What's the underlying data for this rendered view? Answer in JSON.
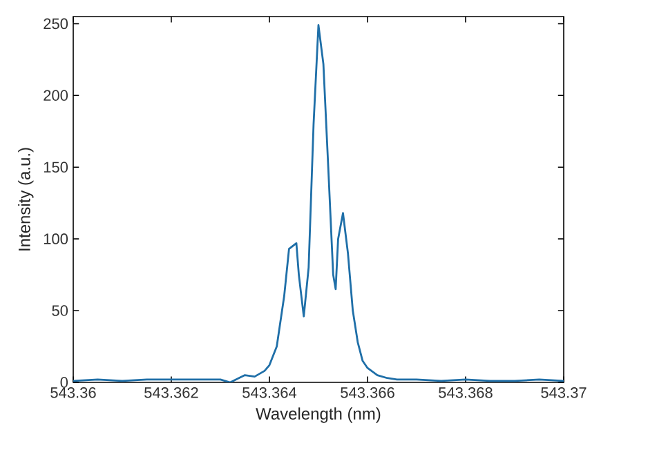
{
  "chart_data": {
    "type": "line",
    "xlabel": "Wavelength (nm)",
    "ylabel": "Intensity (a.u.)",
    "x": [
      543.36,
      543.3605,
      543.361,
      543.3615,
      543.362,
      543.3625,
      543.363,
      543.3632,
      543.3635,
      543.3637,
      543.3639,
      543.364,
      543.36415,
      543.3643,
      543.3644,
      543.36455,
      543.3646,
      543.3647,
      543.3648,
      543.3649,
      543.365,
      543.3651,
      543.3652,
      543.3653,
      543.36535,
      543.3654,
      543.3655,
      543.3656,
      543.3657,
      543.3658,
      543.3659,
      543.366,
      543.3662,
      543.3664,
      543.3666,
      543.367,
      543.3675,
      543.368,
      543.3685,
      543.369,
      543.3695,
      543.37
    ],
    "series": [
      {
        "color": "#1f6fa8",
        "values": [
          1,
          2,
          1,
          2,
          2,
          2,
          2,
          0,
          5,
          4,
          8,
          12,
          25,
          60,
          93,
          97,
          75,
          46,
          80,
          180,
          249,
          222,
          150,
          75,
          65,
          100,
          118,
          90,
          50,
          28,
          15,
          10,
          5,
          3,
          2,
          2,
          1,
          2,
          1,
          1,
          2,
          1
        ]
      }
    ],
    "xlim": [
      543.36,
      543.37
    ],
    "ylim": [
      0,
      255
    ],
    "xticks": [
      543.36,
      543.362,
      543.364,
      543.366,
      543.368,
      543.37
    ],
    "yticks": [
      0,
      50,
      100,
      150,
      200,
      250
    ],
    "grid": false,
    "marker": "none",
    "line_style": "solid"
  }
}
